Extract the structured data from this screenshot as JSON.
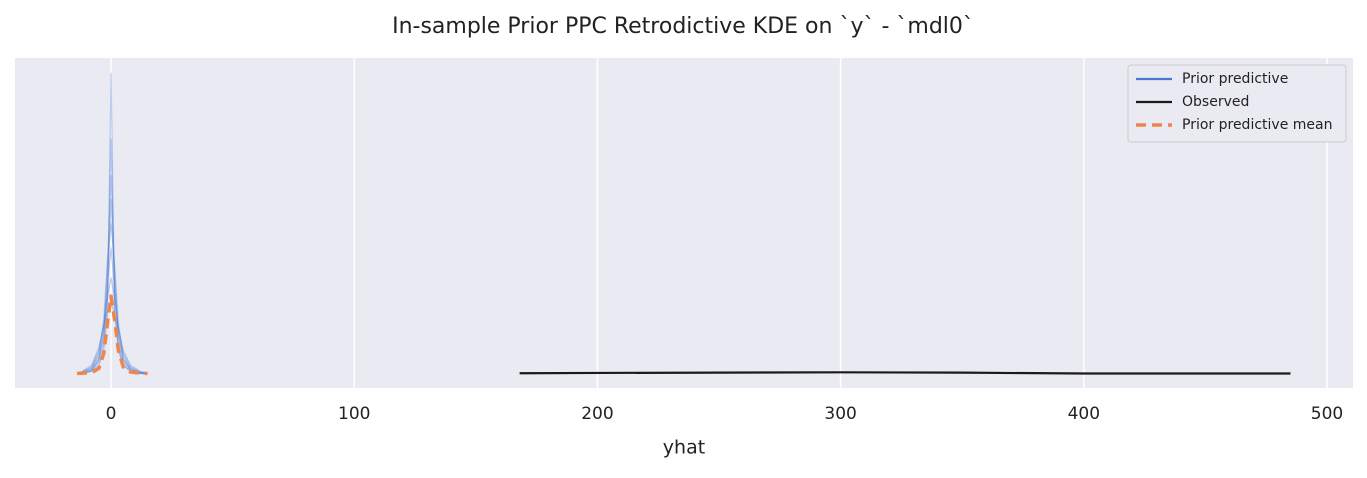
{
  "chart_data": {
    "type": "line",
    "title": "In-sample Prior PPC Retrodictive KDE on `y` - `mdl0`",
    "x_label": "yhat",
    "xlim": [
      -39.5,
      510.7
    ],
    "xticks": [
      0,
      100,
      200,
      300,
      400,
      500
    ],
    "ylim": [
      -0.045,
      1.05
    ],
    "grid": true,
    "legend": "upper right",
    "series": [
      {
        "name": "Prior predictive",
        "color": "#4878d0",
        "linestyle": "solid",
        "x": [
          -12,
          -8,
          -5,
          -3,
          -1.5,
          0,
          1.5,
          3,
          5,
          8,
          12,
          15
        ],
        "samples": [
          [
            0.003,
            0.01,
            0.03,
            0.08,
            0.2,
            1.0,
            0.2,
            0.08,
            0.03,
            0.01,
            0.003,
            0.001
          ],
          [
            0.004,
            0.012,
            0.04,
            0.1,
            0.25,
            0.78,
            0.22,
            0.09,
            0.03,
            0.012,
            0.004,
            0.002
          ],
          [
            0.005,
            0.015,
            0.05,
            0.12,
            0.28,
            0.58,
            0.3,
            0.11,
            0.04,
            0.015,
            0.005,
            0.002
          ],
          [
            0.006,
            0.02,
            0.06,
            0.15,
            0.3,
            0.42,
            0.28,
            0.14,
            0.05,
            0.02,
            0.006,
            0.003
          ],
          [
            0.008,
            0.025,
            0.08,
            0.17,
            0.26,
            0.32,
            0.25,
            0.16,
            0.07,
            0.025,
            0.008,
            0.004
          ],
          [
            0.01,
            0.03,
            0.09,
            0.16,
            0.21,
            0.24,
            0.2,
            0.15,
            0.08,
            0.03,
            0.01,
            0.005
          ],
          [
            0.004,
            0.012,
            0.05,
            0.14,
            0.35,
            0.66,
            0.33,
            0.13,
            0.05,
            0.014,
            0.004,
            0.002
          ],
          [
            0.007,
            0.02,
            0.07,
            0.18,
            0.38,
            0.5,
            0.36,
            0.17,
            0.06,
            0.02,
            0.007,
            0.003
          ]
        ]
      },
      {
        "name": "Observed",
        "color": "#1a1a1a",
        "linestyle": "solid",
        "x": [
          168,
          200,
          250,
          300,
          350,
          400,
          450,
          485
        ],
        "values": [
          0.004,
          0.005,
          0.006,
          0.007,
          0.006,
          0.003,
          0.003,
          0.003
        ]
      },
      {
        "name": "Prior predictive mean",
        "color": "#ee854a",
        "linestyle": "dashed",
        "x": [
          -14,
          -8,
          -5,
          -3,
          -1.5,
          0,
          1.5,
          3,
          5,
          8,
          12,
          15
        ],
        "values": [
          0.003,
          0.006,
          0.02,
          0.07,
          0.17,
          0.26,
          0.18,
          0.08,
          0.025,
          0.008,
          0.004,
          0.003
        ]
      }
    ]
  }
}
